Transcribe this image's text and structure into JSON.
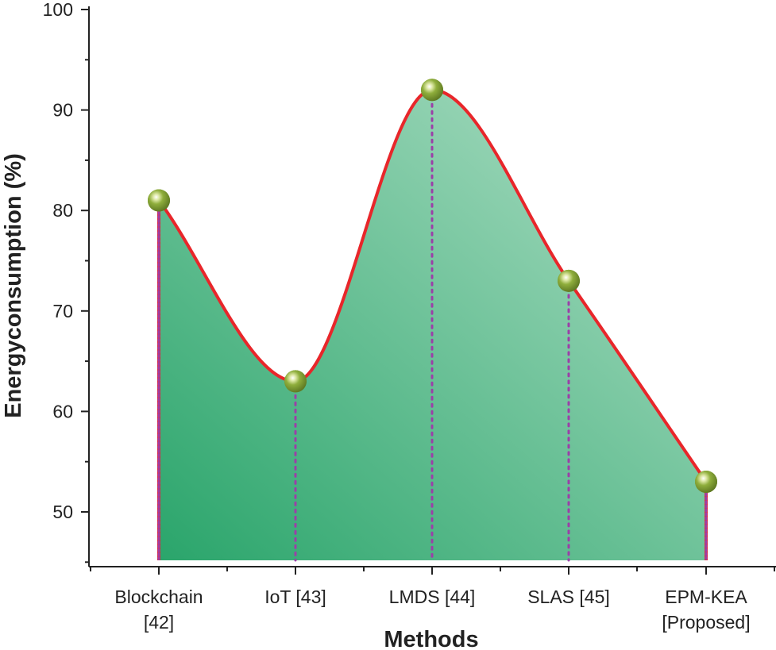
{
  "chart_data": {
    "type": "area",
    "title": "",
    "xlabel": "Methods",
    "ylabel": "Energyconsumption (%)",
    "categories": [
      [
        "Blockchain",
        "[42]"
      ],
      [
        "IoT [43]"
      ],
      [
        "LMDS [44]"
      ],
      [
        "SLAS [45]"
      ],
      [
        "EPM-KEA",
        "[Proposed]"
      ]
    ],
    "values": [
      81,
      63,
      92,
      73,
      53
    ],
    "ylim": [
      45,
      100
    ],
    "yticks": [
      50,
      60,
      70,
      80,
      90,
      100
    ],
    "colors": {
      "line": "#e8262a",
      "marker": "#7f9a2e",
      "drop_line": "#9b3fa8",
      "fill_dark": "#2aa56b",
      "fill_light": "#b3e0c8"
    }
  }
}
